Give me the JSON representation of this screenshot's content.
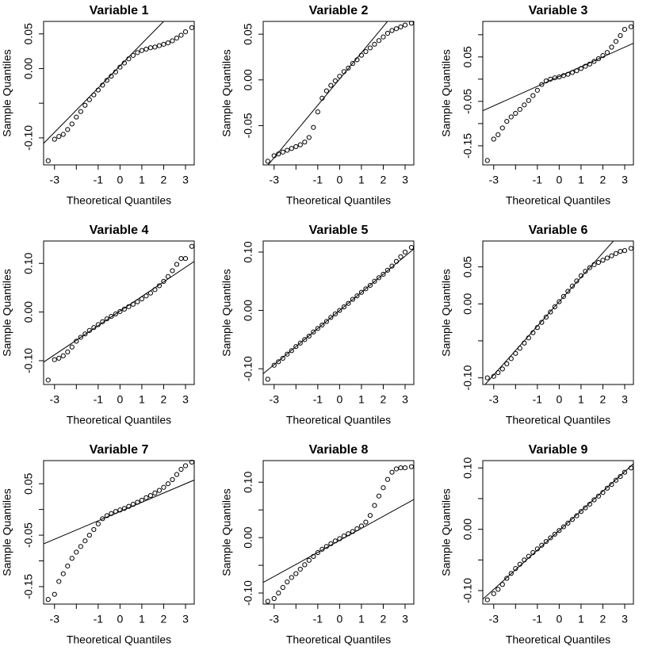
{
  "chart_data": [
    {
      "type": "qq",
      "title": "Variable 1",
      "xlabel": "Theoretical Quantiles",
      "ylabel": "Sample Quantiles",
      "x": [
        -3.29,
        -3.0,
        -2.8,
        -2.6,
        -2.4,
        -2.2,
        -2.0,
        -1.8,
        -1.6,
        -1.4,
        -1.2,
        -1.0,
        -0.8,
        -0.6,
        -0.4,
        -0.2,
        0,
        0.2,
        0.4,
        0.6,
        0.8,
        1.0,
        1.2,
        1.4,
        1.6,
        1.8,
        2.0,
        2.2,
        2.4,
        2.6,
        2.8,
        3.0,
        3.29
      ],
      "values": [
        -0.133,
        -0.102,
        -0.098,
        -0.095,
        -0.088,
        -0.08,
        -0.07,
        -0.062,
        -0.053,
        -0.045,
        -0.038,
        -0.031,
        -0.024,
        -0.017,
        -0.011,
        -0.005,
        0.002,
        0.008,
        0.014,
        0.019,
        0.023,
        0.026,
        0.028,
        0.03,
        0.031,
        0.033,
        0.035,
        0.037,
        0.04,
        0.044,
        0.048,
        0.053,
        0.059
      ],
      "qqline": {
        "intercept": 0.004,
        "slope": 0.032
      },
      "xlim": [
        -3.5,
        3.4
      ],
      "ylim": [
        -0.139,
        0.068
      ],
      "xticks": [
        -3,
        -1,
        0,
        1,
        2,
        3
      ],
      "xminor_ticks": [
        -2
      ],
      "yticks": [
        {
          "value": -0.1,
          "label": "-0.10"
        },
        {
          "value": 0,
          "label": "0.00"
        },
        0.05
      ],
      "yminor_ticks": [
        -0.05
      ]
    },
    {
      "type": "qq",
      "title": "Variable 2",
      "xlabel": "Theoretical Quantiles",
      "ylabel": "Sample Quantiles",
      "x": [
        -3.29,
        -3.0,
        -2.8,
        -2.6,
        -2.4,
        -2.2,
        -2.0,
        -1.8,
        -1.6,
        -1.4,
        -1.2,
        -1.0,
        -0.8,
        -0.6,
        -0.4,
        -0.2,
        0,
        0.2,
        0.4,
        0.6,
        0.8,
        1.0,
        1.2,
        1.4,
        1.6,
        1.8,
        2.0,
        2.2,
        2.4,
        2.6,
        2.8,
        3.0,
        3.29
      ],
      "values": [
        -0.089,
        -0.083,
        -0.081,
        -0.079,
        -0.077,
        -0.075,
        -0.073,
        -0.071,
        -0.068,
        -0.063,
        -0.052,
        -0.035,
        -0.02,
        -0.012,
        -0.006,
        -0.001,
        0.004,
        0.009,
        0.013,
        0.018,
        0.022,
        0.027,
        0.031,
        0.035,
        0.039,
        0.043,
        0.047,
        0.051,
        0.054,
        0.056,
        0.058,
        0.06,
        0.062
      ],
      "qqline": {
        "intercept": 0.001,
        "slope": 0.0287
      },
      "xlim": [
        -3.5,
        3.4
      ],
      "ylim": [
        -0.093,
        0.064
      ],
      "xticks": [
        -3,
        -1,
        0,
        1,
        2,
        3
      ],
      "xminor_ticks": [
        -2
      ],
      "yticks": [
        -0.05,
        {
          "value": 0,
          "label": "0.00"
        },
        0.05
      ],
      "yminor_ticks": []
    },
    {
      "type": "qq",
      "title": "Variable 3",
      "xlabel": "Theoretical Quantiles",
      "ylabel": "Sample Quantiles",
      "x": [
        -3.29,
        -3.0,
        -2.8,
        -2.6,
        -2.4,
        -2.2,
        -2.0,
        -1.8,
        -1.6,
        -1.4,
        -1.2,
        -1.0,
        -0.8,
        -0.6,
        -0.4,
        -0.2,
        0,
        0.2,
        0.4,
        0.6,
        0.8,
        1.0,
        1.2,
        1.4,
        1.6,
        1.8,
        2.0,
        2.2,
        2.4,
        2.6,
        2.8,
        3.0,
        3.29
      ],
      "values": [
        -0.183,
        -0.135,
        -0.125,
        -0.11,
        -0.095,
        -0.085,
        -0.077,
        -0.068,
        -0.058,
        -0.048,
        -0.037,
        -0.025,
        -0.012,
        -0.004,
        0,
        0.003,
        0.005,
        0.008,
        0.011,
        0.015,
        0.019,
        0.024,
        0.029,
        0.034,
        0.04,
        0.046,
        0.053,
        0.06,
        0.072,
        0.085,
        0.098,
        0.112,
        0.118
      ],
      "qqline": {
        "intercept": 0.006,
        "slope": 0.022
      },
      "xlim": [
        -3.5,
        3.4
      ],
      "ylim": [
        -0.193,
        0.13
      ],
      "xticks": [
        -3,
        -1,
        0,
        1,
        2,
        3
      ],
      "xminor_ticks": [
        -2
      ],
      "yticks": [
        -0.15,
        -0.05,
        0.05
      ],
      "yminor_ticks": [
        -0.1,
        0,
        0.1
      ]
    },
    {
      "type": "qq",
      "title": "Variable 4",
      "xlabel": "Theoretical Quantiles",
      "ylabel": "Sample Quantiles",
      "x": [
        -3.29,
        -3.0,
        -2.8,
        -2.6,
        -2.4,
        -2.2,
        -2.0,
        -1.8,
        -1.6,
        -1.4,
        -1.2,
        -1.0,
        -0.8,
        -0.6,
        -0.4,
        -0.2,
        0,
        0.2,
        0.4,
        0.6,
        0.8,
        1.0,
        1.2,
        1.4,
        1.6,
        1.8,
        2.0,
        2.2,
        2.4,
        2.6,
        2.8,
        3.0,
        3.29
      ],
      "values": [
        -0.14,
        -0.098,
        -0.095,
        -0.09,
        -0.082,
        -0.072,
        -0.06,
        -0.052,
        -0.045,
        -0.038,
        -0.032,
        -0.026,
        -0.02,
        -0.014,
        -0.009,
        -0.004,
        0.001,
        0.006,
        0.011,
        0.016,
        0.021,
        0.027,
        0.033,
        0.039,
        0.046,
        0.054,
        0.063,
        0.073,
        0.085,
        0.098,
        0.11,
        0.11,
        0.135
      ],
      "qqline": {
        "intercept": 0.002,
        "slope": 0.03
      },
      "xlim": [
        -3.5,
        3.4
      ],
      "ylim": [
        -0.149,
        0.146
      ],
      "xticks": [
        -3,
        -1,
        0,
        1,
        2,
        3
      ],
      "xminor_ticks": [
        -2
      ],
      "yticks": [
        {
          "value": -0.1,
          "label": "-0.10"
        },
        {
          "value": 0,
          "label": "0.00"
        },
        {
          "value": 0.1,
          "label": "0.10"
        }
      ],
      "yminor_ticks": []
    },
    {
      "type": "qq",
      "title": "Variable 5",
      "xlabel": "Theoretical Quantiles",
      "ylabel": "Sample Quantiles",
      "x": [
        -3.29,
        -3.0,
        -2.8,
        -2.6,
        -2.4,
        -2.2,
        -2.0,
        -1.8,
        -1.6,
        -1.4,
        -1.2,
        -1.0,
        -0.8,
        -0.6,
        -0.4,
        -0.2,
        0,
        0.2,
        0.4,
        0.6,
        0.8,
        1.0,
        1.2,
        1.4,
        1.6,
        1.8,
        2.0,
        2.2,
        2.4,
        2.6,
        2.8,
        3.0,
        3.29
      ],
      "values": [
        -0.118,
        -0.094,
        -0.088,
        -0.082,
        -0.075,
        -0.069,
        -0.062,
        -0.056,
        -0.05,
        -0.044,
        -0.037,
        -0.031,
        -0.025,
        -0.019,
        -0.012,
        -0.006,
        0,
        0.006,
        0.012,
        0.019,
        0.025,
        0.031,
        0.037,
        0.043,
        0.05,
        0.056,
        0.062,
        0.069,
        0.076,
        0.084,
        0.092,
        0.1,
        0.108
      ],
      "qqline": {
        "intercept": 0,
        "slope": 0.031
      },
      "xlim": [
        -3.5,
        3.4
      ],
      "ylim": [
        -0.127,
        0.119
      ],
      "xticks": [
        -3,
        -1,
        0,
        1,
        2,
        3
      ],
      "xminor_ticks": [
        -2
      ],
      "yticks": [
        {
          "value": -0.1,
          "label": "-0.10"
        },
        {
          "value": 0,
          "label": "0.00"
        },
        {
          "value": 0.1,
          "label": "0.10"
        }
      ],
      "yminor_ticks": []
    },
    {
      "type": "qq",
      "title": "Variable 6",
      "xlabel": "Theoretical Quantiles",
      "ylabel": "Sample Quantiles",
      "x": [
        -3.29,
        -3.0,
        -2.8,
        -2.6,
        -2.4,
        -2.2,
        -2.0,
        -1.8,
        -1.6,
        -1.4,
        -1.2,
        -1.0,
        -0.8,
        -0.6,
        -0.4,
        -0.2,
        0,
        0.2,
        0.4,
        0.6,
        0.8,
        1.0,
        1.2,
        1.4,
        1.6,
        1.8,
        2.0,
        2.2,
        2.4,
        2.6,
        2.8,
        3.0,
        3.29
      ],
      "values": [
        -0.1,
        -0.098,
        -0.093,
        -0.088,
        -0.081,
        -0.074,
        -0.067,
        -0.06,
        -0.053,
        -0.046,
        -0.039,
        -0.032,
        -0.025,
        -0.018,
        -0.011,
        -0.004,
        0.003,
        0.01,
        0.017,
        0.024,
        0.031,
        0.038,
        0.044,
        0.049,
        0.053,
        0.056,
        0.059,
        0.062,
        0.065,
        0.068,
        0.071,
        0.072,
        0.075
      ],
      "qqline": {
        "intercept": 0.003,
        "slope": 0.033
      },
      "xlim": [
        -3.5,
        3.4
      ],
      "ylim": [
        -0.109,
        0.085
      ],
      "xticks": [
        -3,
        -1,
        0,
        1,
        2,
        3
      ],
      "xminor_ticks": [
        -2
      ],
      "yticks": [
        {
          "value": -0.1,
          "label": "-0.10"
        },
        {
          "value": 0,
          "label": "0.00"
        },
        0.05
      ],
      "yminor_ticks": [
        -0.05
      ]
    },
    {
      "type": "qq",
      "title": "Variable 7",
      "xlabel": "Theoretical Quantiles",
      "ylabel": "Sample Quantiles",
      "x": [
        -3.29,
        -3.0,
        -2.8,
        -2.6,
        -2.4,
        -2.2,
        -2.0,
        -1.8,
        -1.6,
        -1.4,
        -1.2,
        -1.0,
        -0.8,
        -0.6,
        -0.4,
        -0.2,
        0,
        0.2,
        0.4,
        0.6,
        0.8,
        1.0,
        1.2,
        1.4,
        1.6,
        1.8,
        2.0,
        2.2,
        2.4,
        2.6,
        2.8,
        3.0,
        3.29
      ],
      "values": [
        -0.175,
        -0.165,
        -0.14,
        -0.125,
        -0.11,
        -0.095,
        -0.083,
        -0.072,
        -0.061,
        -0.05,
        -0.039,
        -0.028,
        -0.018,
        -0.012,
        -0.008,
        -0.004,
        -0.001,
        0.002,
        0.006,
        0.01,
        0.014,
        0.018,
        0.023,
        0.027,
        0.032,
        0.037,
        0.043,
        0.05,
        0.058,
        0.068,
        0.078,
        0.085,
        0.092
      ],
      "qqline": {
        "intercept": -0.004,
        "slope": 0.018
      },
      "xlim": [
        -3.5,
        3.4
      ],
      "ylim": [
        -0.184,
        0.095
      ],
      "xticks": [
        -3,
        -1,
        0,
        1,
        2,
        3
      ],
      "xminor_ticks": [
        -2
      ],
      "yticks": [
        -0.15,
        -0.05,
        0.05
      ],
      "yminor_ticks": [
        -0.1,
        0
      ]
    },
    {
      "type": "qq",
      "title": "Variable 8",
      "xlabel": "Theoretical Quantiles",
      "ylabel": "Sample Quantiles",
      "x": [
        -3.29,
        -3.0,
        -2.8,
        -2.6,
        -2.4,
        -2.2,
        -2.0,
        -1.8,
        -1.6,
        -1.4,
        -1.2,
        -1.0,
        -0.8,
        -0.6,
        -0.4,
        -0.2,
        0,
        0.2,
        0.4,
        0.6,
        0.8,
        1.0,
        1.2,
        1.4,
        1.6,
        1.8,
        2.0,
        2.2,
        2.4,
        2.6,
        2.8,
        3.0,
        3.29
      ],
      "values": [
        -0.115,
        -0.11,
        -0.1,
        -0.09,
        -0.08,
        -0.072,
        -0.065,
        -0.057,
        -0.049,
        -0.041,
        -0.034,
        -0.027,
        -0.021,
        -0.016,
        -0.011,
        -0.006,
        -0.002,
        0.003,
        0.007,
        0.011,
        0.016,
        0.021,
        0.028,
        0.04,
        0.058,
        0.075,
        0.09,
        0.105,
        0.118,
        0.124,
        0.126,
        0.126,
        0.128
      ],
      "qqline": {
        "intercept": -0.005,
        "slope": 0.0217
      },
      "xlim": [
        -3.5,
        3.4
      ],
      "ylim": [
        -0.12,
        0.139
      ],
      "xticks": [
        -3,
        -1,
        0,
        1,
        2,
        3
      ],
      "xminor_ticks": [
        -2
      ],
      "yticks": [
        {
          "value": -0.1,
          "label": "-0.10"
        },
        {
          "value": 0,
          "label": "0.00"
        },
        {
          "value": 0.1,
          "label": "0.10"
        }
      ],
      "yminor_ticks": [
        -0.05,
        0.05
      ]
    },
    {
      "type": "qq",
      "title": "Variable 9",
      "xlabel": "Theoretical Quantiles",
      "ylabel": "Sample Quantiles",
      "x": [
        -3.29,
        -3.0,
        -2.8,
        -2.6,
        -2.4,
        -2.2,
        -2.0,
        -1.8,
        -1.6,
        -1.4,
        -1.2,
        -1.0,
        -0.8,
        -0.6,
        -0.4,
        -0.2,
        0,
        0.2,
        0.4,
        0.6,
        0.8,
        1.0,
        1.2,
        1.4,
        1.6,
        1.8,
        2.0,
        2.2,
        2.4,
        2.6,
        2.8,
        3.0,
        3.29
      ],
      "values": [
        -0.115,
        -0.105,
        -0.098,
        -0.09,
        -0.08,
        -0.072,
        -0.064,
        -0.057,
        -0.05,
        -0.044,
        -0.038,
        -0.032,
        -0.026,
        -0.02,
        -0.014,
        -0.008,
        -0.002,
        0.004,
        0.01,
        0.016,
        0.022,
        0.029,
        0.035,
        0.041,
        0.048,
        0.054,
        0.06,
        0.067,
        0.073,
        0.08,
        0.086,
        0.093,
        0.1
      ],
      "qqline": {
        "intercept": -0.002,
        "slope": 0.032
      },
      "xlim": [
        -3.5,
        3.4
      ],
      "ylim": [
        -0.122,
        0.112
      ],
      "xticks": [
        -3,
        -1,
        0,
        1,
        2,
        3
      ],
      "xminor_ticks": [
        -2
      ],
      "yticks": [
        {
          "value": -0.1,
          "label": "-0.10"
        },
        {
          "value": 0,
          "label": "0.00"
        },
        {
          "value": 0.1,
          "label": "0.10"
        }
      ],
      "yminor_ticks": [
        -0.05,
        0.05
      ]
    }
  ]
}
